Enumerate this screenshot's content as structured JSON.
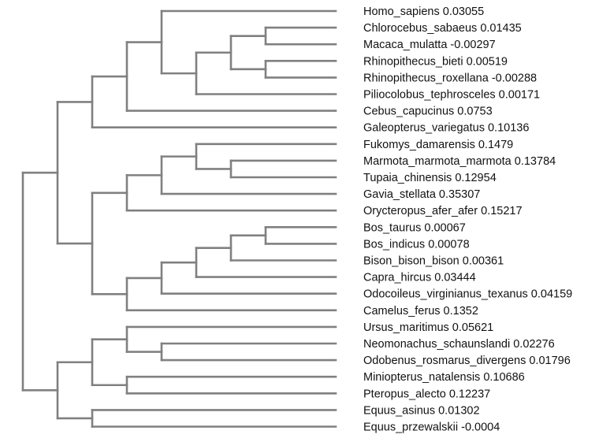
{
  "tree": {
    "line_color": "#808080",
    "leaves": [
      {
        "name": "Homo_sapiens",
        "value": "0.03055"
      },
      {
        "name": "Chlorocebus_sabaeus",
        "value": "0.01435"
      },
      {
        "name": "Macaca_mulatta",
        "value": "-0.00297"
      },
      {
        "name": "Rhinopithecus_bieti",
        "value": "0.00519"
      },
      {
        "name": "Rhinopithecus_roxellana",
        "value": "-0.00288"
      },
      {
        "name": "Piliocolobus_tephrosceles",
        "value": "0.00171"
      },
      {
        "name": "Cebus_capucinus",
        "value": "0.0753"
      },
      {
        "name": "Galeopterus_variegatus",
        "value": "0.10136"
      },
      {
        "name": "Fukomys_damarensis",
        "value": "0.1479"
      },
      {
        "name": "Marmota_marmota_marmota",
        "value": "0.13784"
      },
      {
        "name": "Tupaia_chinensis",
        "value": "0.12954"
      },
      {
        "name": "Gavia_stellata",
        "value": "0.35307"
      },
      {
        "name": "Orycteropus_afer_afer",
        "value": "0.15217"
      },
      {
        "name": "Bos_taurus",
        "value": "0.00067"
      },
      {
        "name": "Bos_indicus",
        "value": "0.00078"
      },
      {
        "name": "Bison_bison_bison",
        "value": "0.00361"
      },
      {
        "name": "Capra_hircus",
        "value": "0.03444"
      },
      {
        "name": "Odocoileus_virginianus_texanus",
        "value": "0.04159"
      },
      {
        "name": "Camelus_ferus",
        "value": "0.1352"
      },
      {
        "name": "Ursus_maritimus",
        "value": "0.05621"
      },
      {
        "name": "Neomonachus_schaunslandi",
        "value": "0.02276"
      },
      {
        "name": "Odobenus_rosmarus_divergens",
        "value": "0.01796"
      },
      {
        "name": "Miniopterus_natalensis",
        "value": "0.10686"
      },
      {
        "name": "Pteropus_alecto",
        "value": "0.12237"
      },
      {
        "name": "Equus_asinus",
        "value": "0.01302"
      },
      {
        "name": "Equus_przewalskii",
        "value": "-0.0004"
      }
    ],
    "topology": [
      [
        [
          [
            [
              0,
              [
                [
                  [
                    1,
                    2
                  ],
                  [
                    3,
                    4
                  ]
                ],
                5
              ]
            ],
            6
          ],
          7
        ],
        [
          [
            [
              [
                8,
                [
                  9,
                  10
                ]
              ],
              11
            ],
            12
          ],
          [
            [
              [
                [
                  [
                    13,
                    14
                  ],
                  15
                ],
                16
              ],
              17
            ],
            18
          ]
        ]
      ],
      [
        [
          [
            19,
            [
              20,
              21
            ]
          ],
          [
            22,
            23
          ]
        ],
        [
          24,
          25
        ]
      ]
    ]
  }
}
